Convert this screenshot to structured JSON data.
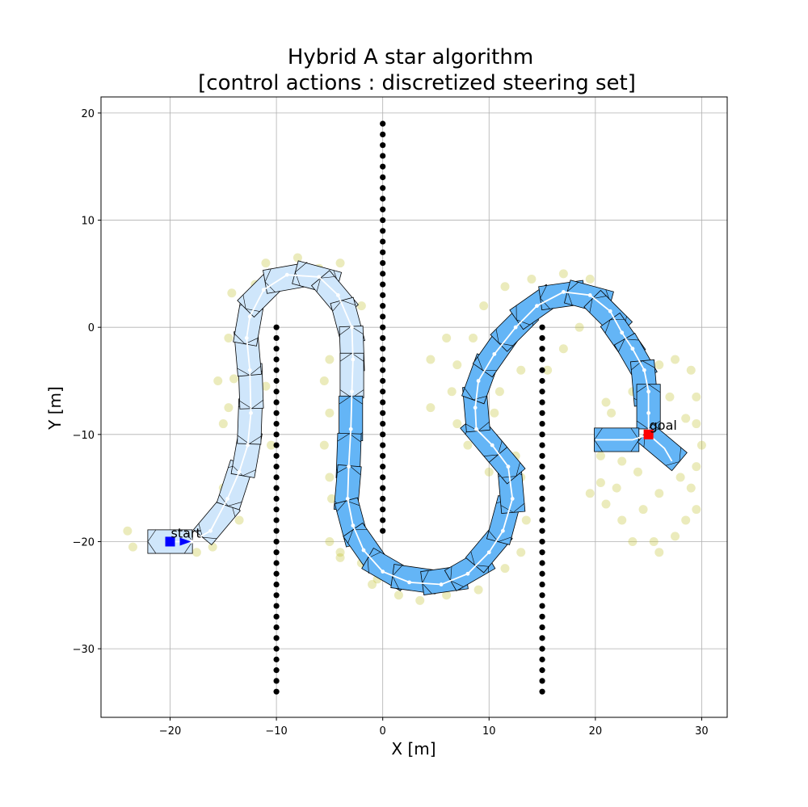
{
  "chart_data": {
    "type": "scatter",
    "title": "Hybrid A star algorithm",
    "subtitle": "[control actions : discretized steering set]",
    "xlabel": "X [m]",
    "ylabel": "Y [m]",
    "xlim": [
      -26.5,
      32.4
    ],
    "ylim": [
      -36.4,
      21.5
    ],
    "xticks": [
      -20,
      -10,
      0,
      10,
      20,
      30
    ],
    "yticks": [
      -30,
      -20,
      -10,
      0,
      10,
      20
    ],
    "xtick_labels": [
      "−20",
      "−10",
      "0",
      "10",
      "20",
      "30"
    ],
    "ytick_labels": [
      "−30",
      "−20",
      "−10",
      "0",
      "10",
      "20"
    ],
    "grid": true,
    "colors": {
      "obstacle": "#000000",
      "explored": "#bcbd22",
      "path": "#ffffff",
      "footprint_light": "#cfe6fb",
      "footprint_mid": "#64b5f6",
      "start": "#0000ff",
      "goal": "#ff0000"
    },
    "obstacles": [
      {
        "x": -10,
        "y_from": -34,
        "y_to": 0
      },
      {
        "x": 0,
        "y_from": -19,
        "y_to": 19
      },
      {
        "x": 15,
        "y_from": -34,
        "y_to": 0
      }
    ],
    "start": {
      "x": -20,
      "y": -20,
      "yaw_deg": 0,
      "label": "start"
    },
    "goal": {
      "x": 25,
      "y": -10,
      "yaw_deg": 150,
      "label": "goal"
    },
    "path": [
      [
        -20,
        -20
      ],
      [
        -18,
        -20
      ],
      [
        -16.2,
        -19
      ],
      [
        -14.6,
        -16
      ],
      [
        -13.5,
        -13.5
      ],
      [
        -12.7,
        -11
      ],
      [
        -12.4,
        -8
      ],
      [
        -12.5,
        -4
      ],
      [
        -12.8,
        -1
      ],
      [
        -12.5,
        1
      ],
      [
        -11.2,
        3.5
      ],
      [
        -9,
        4.9
      ],
      [
        -6,
        4.7
      ],
      [
        -4.2,
        3
      ],
      [
        -2.9,
        0
      ],
      [
        -2.8,
        -3
      ],
      [
        -2.9,
        -6
      ],
      [
        -3,
        -9.5
      ],
      [
        -3.2,
        -13
      ],
      [
        -3.3,
        -16
      ],
      [
        -2.8,
        -18.5
      ],
      [
        -1.8,
        -20.8
      ],
      [
        0,
        -22.8
      ],
      [
        2.5,
        -23.8
      ],
      [
        5.5,
        -24
      ],
      [
        8,
        -23
      ],
      [
        10,
        -21
      ],
      [
        11.3,
        -19
      ],
      [
        12.2,
        -16
      ],
      [
        11.8,
        -13
      ],
      [
        10.3,
        -11
      ],
      [
        8.8,
        -9.5
      ],
      [
        8.7,
        -7.5
      ],
      [
        9,
        -5
      ],
      [
        10.5,
        -2.5
      ],
      [
        12.5,
        0
      ],
      [
        14.5,
        2
      ],
      [
        17,
        3.3
      ],
      [
        19.5,
        3
      ],
      [
        21.4,
        1.5
      ],
      [
        22.5,
        -0.5
      ],
      [
        23.5,
        -2
      ],
      [
        24.6,
        -4
      ],
      [
        25,
        -6
      ],
      [
        25,
        -8
      ],
      [
        25,
        -10
      ]
    ],
    "branches": [
      [
        [
          25,
          -10
        ],
        [
          23.5,
          -10.5
        ],
        [
          21.8,
          -10.5
        ],
        [
          20,
          -10.5
        ]
      ],
      [
        [
          25,
          -10
        ],
        [
          26.5,
          -11.3
        ],
        [
          27.2,
          -12.5
        ]
      ]
    ],
    "footprints_light": [
      [
        -20,
        -20,
        0
      ],
      [
        -15.6,
        -18,
        50
      ],
      [
        -13.9,
        -14.7,
        72
      ],
      [
        -12.8,
        -11.8,
        80
      ],
      [
        -12.5,
        -8.8,
        88
      ],
      [
        -12.4,
        -5.5,
        92
      ],
      [
        -12.7,
        -2.4,
        95
      ],
      [
        -12.6,
        0.5,
        80
      ],
      [
        -11.4,
        3.2,
        45
      ],
      [
        -9,
        4.6,
        10
      ],
      [
        -6.2,
        4.6,
        -15
      ],
      [
        -4.5,
        3,
        -50
      ],
      [
        -3.3,
        0.5,
        -75
      ],
      [
        -2.9,
        -2,
        -88
      ],
      [
        -2.9,
        -4.5,
        -90
      ]
    ],
    "footprints_mid": [
      [
        -3,
        -8.5,
        -90
      ],
      [
        -3.2,
        -12,
        -92
      ],
      [
        -3.3,
        -15,
        -95
      ],
      [
        -2.9,
        -18.2,
        -75
      ],
      [
        -1.6,
        -20.6,
        -55
      ],
      [
        0.4,
        -22.6,
        -30
      ],
      [
        3,
        -23.5,
        -8
      ],
      [
        5.8,
        -23.6,
        8
      ],
      [
        8.2,
        -22.6,
        30
      ],
      [
        10,
        -20.6,
        50
      ],
      [
        11.4,
        -18,
        75
      ],
      [
        12.1,
        -15.2,
        95
      ],
      [
        11.2,
        -12.3,
        130
      ],
      [
        9.5,
        -10.3,
        130
      ],
      [
        8.8,
        -7.6,
        95
      ],
      [
        9.2,
        -4.8,
        70
      ],
      [
        10.6,
        -2.3,
        55
      ],
      [
        12.4,
        0,
        45
      ],
      [
        14.3,
        1.9,
        35
      ],
      [
        16.9,
        3,
        8
      ],
      [
        19.4,
        2.8,
        -15
      ],
      [
        21.2,
        1.2,
        -45
      ],
      [
        22.6,
        -1,
        -55
      ],
      [
        23.8,
        -2.9,
        -60
      ],
      [
        24.6,
        -5.2,
        -85
      ],
      [
        25,
        -7.4,
        -90
      ],
      [
        22,
        -10.5,
        180
      ],
      [
        26.3,
        -11.2,
        -40
      ]
    ],
    "explored": [
      [
        -24,
        -19
      ],
      [
        -23.5,
        -20.5
      ],
      [
        -17.5,
        -21
      ],
      [
        -16,
        -20.5
      ],
      [
        -15,
        -15
      ],
      [
        -14,
        -13
      ],
      [
        -15,
        -9
      ],
      [
        -15.5,
        -5
      ],
      [
        -14.5,
        -1
      ],
      [
        -14.2,
        3.2
      ],
      [
        -12,
        4
      ],
      [
        -11,
        6
      ],
      [
        -8,
        6.5
      ],
      [
        -6,
        5.5
      ],
      [
        -4,
        6
      ],
      [
        -5,
        3
      ],
      [
        -2,
        2
      ],
      [
        -5,
        -3
      ],
      [
        -5.5,
        -5
      ],
      [
        -5,
        -8
      ],
      [
        -5.5,
        -11
      ],
      [
        -5,
        -14
      ],
      [
        -4.8,
        -16
      ],
      [
        -5,
        -20
      ],
      [
        -4,
        -21
      ],
      [
        -2,
        -22
      ],
      [
        -1,
        -24
      ],
      [
        1.5,
        -25
      ],
      [
        3.5,
        -25.5
      ],
      [
        6,
        -25
      ],
      [
        9,
        -24.5
      ],
      [
        11.5,
        -22.5
      ],
      [
        13,
        -21
      ],
      [
        13.5,
        -18
      ],
      [
        13,
        -14
      ],
      [
        12.5,
        -12
      ],
      [
        10,
        -13.5
      ],
      [
        8,
        -11
      ],
      [
        7,
        -9
      ],
      [
        6.5,
        -6
      ],
      [
        7,
        -3.5
      ],
      [
        8.5,
        -1
      ],
      [
        9.5,
        2
      ],
      [
        11.5,
        3.8
      ],
      [
        14,
        4.5
      ],
      [
        17,
        5
      ],
      [
        19.5,
        4.5
      ],
      [
        20,
        2
      ],
      [
        18.5,
        0
      ],
      [
        17,
        -2
      ],
      [
        15.5,
        -4
      ],
      [
        13,
        -4
      ],
      [
        11,
        -6
      ],
      [
        10.5,
        -8
      ],
      [
        4.5,
        -7.5
      ],
      [
        4.5,
        -3
      ],
      [
        6,
        -1
      ],
      [
        21,
        -7
      ],
      [
        20.5,
        -12
      ],
      [
        20.5,
        -14.5
      ],
      [
        19.5,
        -15.5
      ],
      [
        21,
        -16.5
      ],
      [
        22.5,
        -18
      ],
      [
        23.5,
        -20
      ],
      [
        25.5,
        -20
      ],
      [
        26,
        -21
      ],
      [
        27.5,
        -19.5
      ],
      [
        28.5,
        -18
      ],
      [
        29.5,
        -17
      ],
      [
        29,
        -15
      ],
      [
        29.5,
        -13
      ],
      [
        30,
        -11
      ],
      [
        29.5,
        -9
      ],
      [
        29.5,
        -6.5
      ],
      [
        29,
        -4
      ],
      [
        27.5,
        -3
      ],
      [
        26,
        -3.5
      ],
      [
        28,
        -14
      ],
      [
        26,
        -15.5
      ],
      [
        24,
        -13.5
      ],
      [
        22.5,
        -12.5
      ],
      [
        21.5,
        -8
      ],
      [
        23.5,
        -6
      ],
      [
        27,
        -6.5
      ],
      [
        28.5,
        -8.5
      ],
      [
        24.5,
        -17
      ],
      [
        22,
        -15
      ],
      [
        -13.5,
        -18
      ],
      [
        -14.5,
        -7.5
      ],
      [
        -14,
        -4.8
      ],
      [
        -10.5,
        -11
      ],
      [
        -11,
        -5.5
      ],
      [
        -4,
        -21.5
      ],
      [
        -0.5,
        -23.5
      ],
      [
        2,
        -24
      ],
      [
        1,
        -23
      ]
    ],
    "annotations": {
      "start_label": "start",
      "goal_label": "goal"
    }
  }
}
